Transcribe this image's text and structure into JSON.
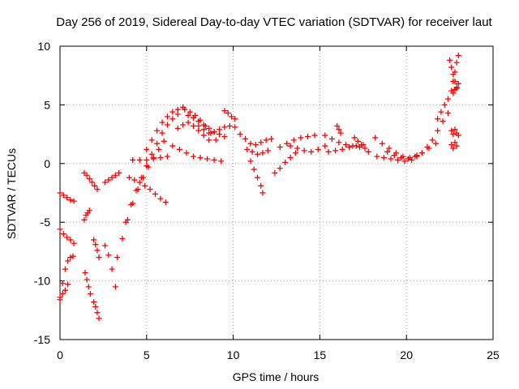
{
  "chart_data": {
    "type": "scatter",
    "title": "Day 256 of 2019, Sidereal Day-to-day VTEC variation (SDTVAR) for receiver laut",
    "xlabel": "GPS time / hours",
    "ylabel": "SDTVAR / TECUs",
    "xlim": [
      0,
      25
    ],
    "ylim": [
      -15,
      10
    ],
    "grid": true,
    "marker": "+",
    "series_color": "#ff0000",
    "x_ticks": [
      0,
      5,
      10,
      15,
      20,
      25
    ],
    "y_ticks": [
      -15,
      -10,
      -5,
      0,
      5,
      10
    ],
    "tracks": [
      {
        "name": "arc1",
        "x": [
          0.0,
          0.2,
          0.4,
          0.6,
          0.8
        ],
        "y": [
          -2.5,
          -2.7,
          -2.9,
          -3.1,
          -3.2
        ]
      },
      {
        "name": "arc2",
        "x": [
          0.0,
          0.2,
          0.4,
          0.6,
          0.8
        ],
        "y": [
          -5.6,
          -6.0,
          -6.3,
          -6.5,
          -6.8
        ]
      },
      {
        "name": "arc3",
        "x": [
          0.0,
          0.15,
          0.3,
          0.45,
          0.6,
          0.75
        ],
        "y": [
          -11.6,
          -10.2,
          -9.0,
          -8.3,
          -8.0,
          -7.9
        ]
      },
      {
        "name": "arc4",
        "x": [
          0.0,
          0.15,
          0.3,
          0.45
        ],
        "y": [
          -11.4,
          -11.1,
          -10.8,
          -10.3
        ]
      },
      {
        "name": "arc5",
        "x": [
          1.4,
          1.55,
          1.7,
          1.85,
          2.0,
          2.15
        ],
        "y": [
          -0.8,
          -1.0,
          -1.3,
          -1.6,
          -1.9,
          -2.2
        ]
      },
      {
        "name": "arc6",
        "x": [
          1.4,
          1.5,
          1.6,
          1.7
        ],
        "y": [
          -4.8,
          -4.4,
          -4.2,
          -4.0
        ]
      },
      {
        "name": "arc7",
        "x": [
          1.45,
          1.55,
          1.65,
          1.75
        ],
        "y": [
          -9.3,
          -9.9,
          -10.5,
          -11.1
        ]
      },
      {
        "name": "arc8",
        "x": [
          1.95,
          2.05,
          2.15,
          2.25
        ],
        "y": [
          -6.5,
          -6.9,
          -7.4,
          -8.0
        ]
      },
      {
        "name": "arc9",
        "x": [
          1.95,
          2.05,
          2.15,
          2.25
        ],
        "y": [
          -11.8,
          -12.2,
          -12.7,
          -13.2
        ]
      },
      {
        "name": "arc10",
        "x": [
          2.6,
          2.8,
          3.0,
          3.2
        ],
        "y": [
          -7.0,
          -7.8,
          -9.0,
          -10.5
        ]
      },
      {
        "name": "arc11",
        "x": [
          2.6,
          2.8,
          3.0,
          3.2,
          3.4
        ],
        "y": [
          -1.6,
          -1.4,
          -1.2,
          -1.0,
          -0.8
        ]
      },
      {
        "name": "arc12",
        "x": [
          3.3,
          3.6,
          3.9,
          4.2,
          4.5,
          4.8,
          5.1,
          5.4,
          5.7,
          6.0
        ],
        "y": [
          -8.0,
          -6.4,
          -4.8,
          -3.4,
          -2.2,
          -1.2,
          -0.3,
          0.5,
          1.2,
          1.9
        ]
      },
      {
        "name": "arc13",
        "x": [
          3.8,
          4.1,
          4.4,
          4.7,
          5.0,
          5.3,
          5.6,
          5.9,
          6.2,
          6.5,
          6.8
        ],
        "y": [
          -5.0,
          -3.5,
          -2.3,
          -1.2,
          -0.2,
          0.8,
          1.7,
          2.6,
          3.3,
          3.8,
          4.2
        ]
      },
      {
        "name": "arc14",
        "x": [
          4.0,
          4.3,
          4.6,
          4.9,
          5.2,
          5.5,
          5.8,
          6.1
        ],
        "y": [
          -1.2,
          -1.4,
          -1.6,
          -1.9,
          -2.2,
          -2.6,
          -3.0,
          -3.3
        ]
      },
      {
        "name": "arc15",
        "x": [
          4.2,
          4.6,
          5.0,
          5.4,
          5.8,
          6.2
        ],
        "y": [
          0.3,
          0.3,
          0.3,
          0.4,
          0.5,
          0.6
        ]
      },
      {
        "name": "arc16",
        "x": [
          5.0,
          5.3,
          5.6,
          5.9,
          6.2,
          6.5,
          6.8,
          7.1
        ],
        "y": [
          1.2,
          2.0,
          2.8,
          3.5,
          4.0,
          4.4,
          4.6,
          4.8
        ]
      },
      {
        "name": "arc17",
        "x": [
          6.5,
          6.9,
          7.3,
          7.7,
          8.1,
          8.5,
          8.9,
          9.3
        ],
        "y": [
          1.5,
          1.2,
          0.9,
          0.6,
          0.5,
          0.4,
          0.3,
          0.2
        ]
      },
      {
        "name": "arc18",
        "x": [
          6.8,
          7.1,
          7.4,
          7.7,
          8.0,
          8.3,
          8.6
        ],
        "y": [
          3.0,
          3.3,
          3.5,
          3.2,
          2.8,
          2.4,
          2.0
        ]
      },
      {
        "name": "arc19",
        "x": [
          7.2,
          7.5,
          7.8,
          8.1,
          8.4,
          8.7,
          9.0
        ],
        "y": [
          4.6,
          4.4,
          4.1,
          3.7,
          3.2,
          2.6,
          2.0
        ]
      },
      {
        "name": "arc20",
        "x": [
          7.4,
          7.7,
          8.0,
          8.3,
          8.6,
          8.9,
          9.2,
          9.5
        ],
        "y": [
          4.1,
          3.9,
          3.6,
          3.3,
          3.0,
          2.7,
          2.5,
          2.3
        ]
      },
      {
        "name": "arc21",
        "x": [
          8.0,
          8.3,
          8.6,
          8.9,
          9.2,
          9.5,
          9.8,
          10.1
        ],
        "y": [
          3.2,
          2.9,
          2.6,
          2.7,
          2.9,
          3.1,
          3.2,
          3.1
        ]
      },
      {
        "name": "arc22",
        "x": [
          9.5,
          9.7,
          9.9,
          10.1
        ],
        "y": [
          4.5,
          4.3,
          4.0,
          3.8
        ]
      },
      {
        "name": "arc23",
        "x": [
          10.4,
          10.7,
          11.0,
          11.3,
          11.6,
          11.9,
          12.2
        ],
        "y": [
          2.5,
          2.1,
          1.7,
          1.6,
          1.8,
          2.0,
          2.1
        ]
      },
      {
        "name": "arc24",
        "x": [
          11.0,
          11.2,
          11.4,
          11.6,
          11.7
        ],
        "y": [
          0.2,
          -0.5,
          -1.2,
          -1.9,
          -2.5
        ]
      },
      {
        "name": "arc25",
        "x": [
          10.8,
          11.1,
          11.4,
          11.7,
          12.0
        ],
        "y": [
          1.2,
          1.0,
          0.8,
          0.9,
          1.1
        ]
      },
      {
        "name": "arc26",
        "x": [
          12.4,
          12.7,
          13.0,
          13.3,
          13.6
        ],
        "y": [
          -0.8,
          -0.4,
          0.1,
          0.5,
          0.9
        ]
      },
      {
        "name": "arc27",
        "x": [
          12.7,
          13.1,
          13.5,
          13.9,
          14.3,
          14.7
        ],
        "y": [
          1.4,
          1.7,
          2.0,
          2.2,
          2.3,
          2.4
        ]
      },
      {
        "name": "arc28",
        "x": [
          13.3,
          13.7,
          14.1,
          14.5,
          14.9,
          15.3
        ],
        "y": [
          1.5,
          1.3,
          1.1,
          1.0,
          1.2,
          1.5
        ]
      },
      {
        "name": "arc29",
        "x": [
          15.3,
          15.7,
          16.1,
          16.5,
          16.9,
          17.3
        ],
        "y": [
          2.4,
          2.1,
          1.8,
          1.6,
          1.5,
          1.4
        ]
      },
      {
        "name": "arc30",
        "x": [
          16.0,
          16.1,
          16.2
        ],
        "y": [
          3.2,
          2.9,
          2.6
        ]
      },
      {
        "name": "arc31",
        "x": [
          15.5,
          15.9,
          16.3,
          16.7,
          17.1,
          17.5
        ],
        "y": [
          1.0,
          1.1,
          1.2,
          1.4,
          1.5,
          1.6
        ]
      },
      {
        "name": "arc32",
        "x": [
          17.0,
          17.2,
          17.4,
          17.6,
          17.8
        ],
        "y": [
          2.2,
          1.9,
          1.6,
          1.3,
          1.0
        ]
      },
      {
        "name": "arc33",
        "x": [
          18.2,
          18.6,
          19.0,
          19.4,
          19.8,
          20.2,
          20.6
        ],
        "y": [
          2.2,
          1.7,
          1.3,
          0.9,
          0.6,
          0.5,
          0.7
        ]
      },
      {
        "name": "arc34",
        "x": [
          18.3,
          18.7,
          19.1,
          19.5,
          19.9,
          20.3
        ],
        "y": [
          0.6,
          0.5,
          0.4,
          0.3,
          0.2,
          0.3
        ]
      },
      {
        "name": "arc35",
        "x": [
          18.9,
          19.3,
          19.7,
          20.1,
          20.5,
          20.9,
          21.3,
          21.7
        ],
        "y": [
          1.0,
          0.7,
          0.5,
          0.4,
          0.6,
          0.9,
          1.3,
          1.7
        ]
      },
      {
        "name": "arc36",
        "x": [
          20.6,
          20.9,
          21.2,
          21.5,
          21.8,
          22.1,
          22.4
        ],
        "y": [
          0.6,
          0.9,
          1.4,
          2.0,
          2.8,
          3.6,
          4.3
        ]
      },
      {
        "name": "arc37",
        "x": [
          21.8,
          22.0,
          22.2,
          22.4
        ],
        "y": [
          3.8,
          4.4,
          5.0,
          5.5
        ]
      },
      {
        "name": "arc38",
        "x": [
          22.6,
          22.7,
          22.8,
          22.9,
          23.0
        ],
        "y": [
          2.8,
          2.5,
          2.9,
          2.6,
          2.4
        ]
      },
      {
        "name": "arc39",
        "x": [
          22.6,
          22.7,
          22.8,
          22.9
        ],
        "y": [
          1.6,
          1.3,
          1.8,
          1.5
        ]
      },
      {
        "name": "arc40",
        "x": [
          22.6,
          22.7,
          22.8,
          22.9,
          23.0
        ],
        "y": [
          6.2,
          7.0,
          7.8,
          8.6,
          9.2
        ]
      },
      {
        "name": "arc41",
        "x": [
          22.5,
          22.6,
          22.7,
          22.8,
          22.9
        ],
        "y": [
          8.8,
          8.2,
          7.6,
          7.0,
          6.4
        ]
      },
      {
        "name": "arc42",
        "x": [
          22.7,
          22.8,
          22.9,
          23.0
        ],
        "y": [
          6.0,
          6.3,
          6.5,
          6.8
        ]
      }
    ]
  }
}
